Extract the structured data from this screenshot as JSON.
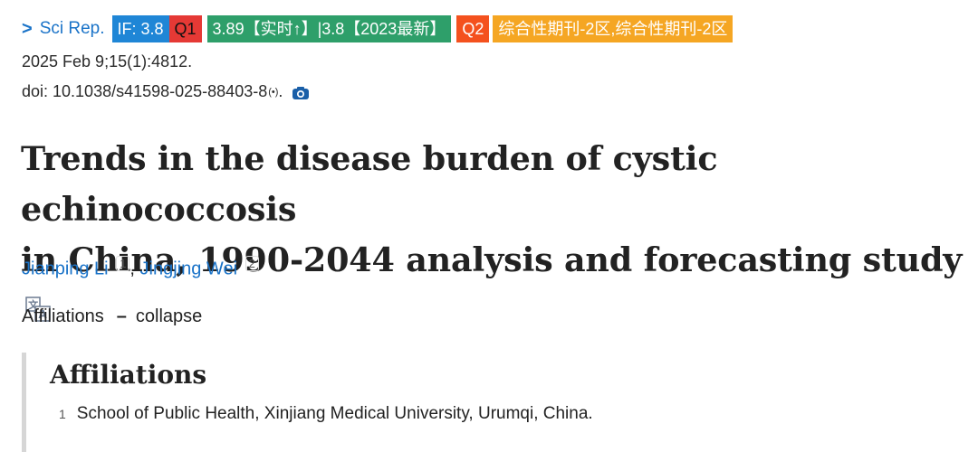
{
  "journal": {
    "chevron": ">",
    "name": "Sci Rep.",
    "badges": {
      "if": "IF: 3.8",
      "q1": "Q1",
      "realtime": "3.89【实时↑】|3.8【2023最新】",
      "q2": "Q2",
      "category": "综合性期刊-2区,综合性期刊-2区"
    }
  },
  "pub": {
    "date": "2025 Feb 9;15(1):4812.",
    "doi": "doi: 10.1038/s41598-025-88403-8",
    "doi_sup": "(•)",
    "doi_end": "."
  },
  "title": {
    "line1": "Trends in the disease burden of cystic echinococcosis",
    "line2": "in China, 1990-2044 analysis and forecasting study"
  },
  "authors": [
    {
      "name": "Jianping Li",
      "aff": "1"
    },
    {
      "name": "Jingjing Wei",
      "aff": "2"
    }
  ],
  "author_separator": ",",
  "affiliations_toggle": {
    "label": "Affiliations",
    "dash": "–",
    "action": "collapse"
  },
  "affiliations_box": {
    "heading": "Affiliations",
    "items": [
      {
        "num": "1",
        "text": "School of Public Health, Xinjiang Medical University, Urumqi, China."
      }
    ]
  }
}
